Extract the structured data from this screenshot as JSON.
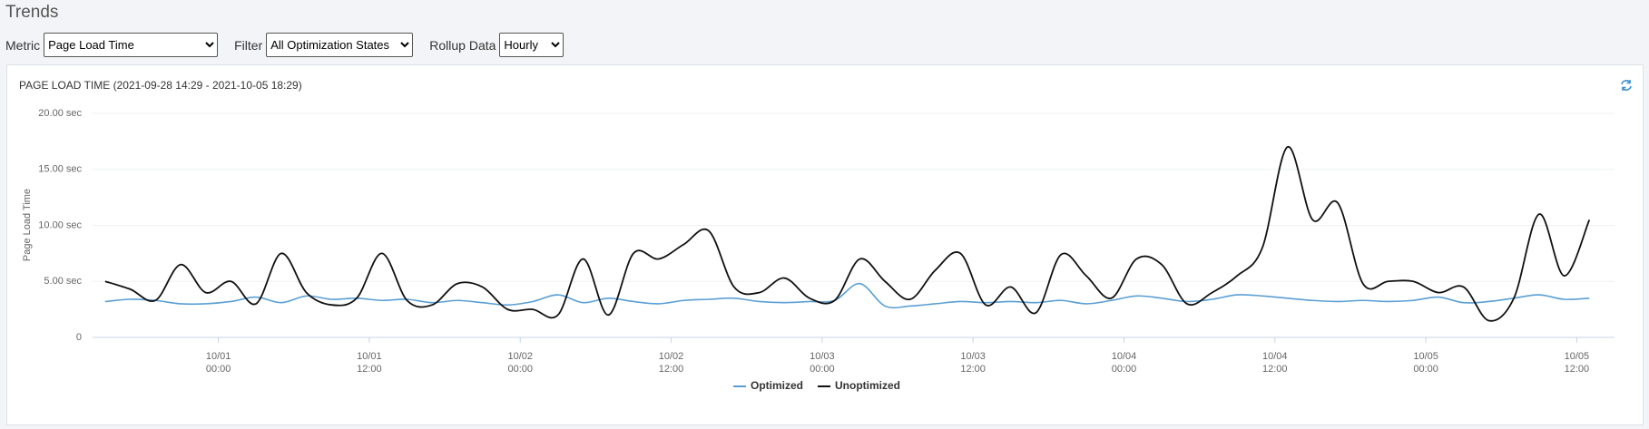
{
  "header": {
    "title": "Trends"
  },
  "controls": [
    {
      "label": "Metric",
      "value": "Page Load Time"
    },
    {
      "label": "Filter",
      "value": "All Optimization States"
    },
    {
      "label": "Rollup Data",
      "value": "Hourly"
    }
  ],
  "chart_data": {
    "type": "line",
    "title": "PAGE LOAD TIME (2021-09-28 14:29 - 2021-10-05 18:29)",
    "ylabel": "Page Load Time",
    "x": [
      "09/30 15:00",
      "09/30 17:00",
      "09/30 19:00",
      "09/30 21:00",
      "09/30 23:00",
      "10/01 01:00",
      "10/01 03:00",
      "10/01 05:00",
      "10/01 07:00",
      "10/01 09:00",
      "10/01 11:00",
      "10/01 13:00",
      "10/01 15:00",
      "10/01 17:00",
      "10/01 19:00",
      "10/01 21:00",
      "10/01 23:00",
      "10/02 01:00",
      "10/02 03:00",
      "10/02 05:00",
      "10/02 07:00",
      "10/02 09:00",
      "10/02 11:00",
      "10/02 13:00",
      "10/02 15:00",
      "10/02 17:00",
      "10/02 19:00",
      "10/02 21:00",
      "10/02 23:00",
      "10/03 01:00",
      "10/03 03:00",
      "10/03 05:00",
      "10/03 07:00",
      "10/03 09:00",
      "10/03 11:00",
      "10/03 13:00",
      "10/03 15:00",
      "10/03 17:00",
      "10/03 19:00",
      "10/03 21:00",
      "10/03 23:00",
      "10/04 01:00",
      "10/04 03:00",
      "10/04 05:00",
      "10/04 07:00",
      "10/04 09:00",
      "10/04 11:00",
      "10/04 13:00",
      "10/04 15:00",
      "10/04 17:00",
      "10/04 19:00",
      "10/04 21:00",
      "10/04 23:00",
      "10/05 01:00",
      "10/05 03:00",
      "10/05 05:00",
      "10/05 07:00",
      "10/05 09:00",
      "10/05 11:00",
      "10/05 13:00"
    ],
    "series": [
      {
        "name": "Optimized",
        "color": "#5a9fd4",
        "values": [
          3.2,
          3.4,
          3.3,
          3.0,
          3.0,
          3.2,
          3.6,
          3.1,
          3.7,
          3.4,
          3.5,
          3.3,
          3.4,
          3.1,
          3.3,
          3.1,
          2.9,
          3.2,
          3.8,
          3.1,
          3.5,
          3.2,
          3.0,
          3.3,
          3.4,
          3.5,
          3.2,
          3.1,
          3.2,
          3.3,
          4.8,
          2.8,
          2.8,
          3.0,
          3.2,
          3.1,
          3.2,
          3.1,
          3.3,
          3.0,
          3.3,
          3.7,
          3.5,
          3.2,
          3.4,
          3.8,
          3.7,
          3.5,
          3.3,
          3.2,
          3.3,
          3.2,
          3.3,
          3.6,
          3.1,
          3.2,
          3.5,
          3.8,
          3.4,
          3.5
        ]
      },
      {
        "name": "Unoptimized",
        "color": "#111111",
        "values": [
          5.0,
          4.3,
          3.3,
          6.5,
          4.0,
          5.0,
          3.0,
          7.5,
          4.0,
          2.9,
          3.5,
          7.5,
          3.3,
          2.9,
          4.8,
          4.5,
          2.5,
          2.5,
          2.0,
          7.0,
          2.0,
          7.5,
          7.0,
          8.3,
          9.5,
          4.5,
          4.0,
          5.3,
          3.5,
          3.3,
          7.0,
          5.0,
          3.4,
          6.0,
          7.5,
          2.9,
          4.5,
          2.2,
          7.4,
          5.5,
          3.5,
          7.0,
          6.5,
          3.0,
          4.0,
          5.5,
          8.0,
          17.0,
          10.5,
          12.0,
          4.8,
          5.0,
          5.0,
          4.0,
          4.5,
          1.5,
          3.5,
          11.0,
          5.5,
          10.5
        ]
      }
    ],
    "xlim": [
      "09/30 14:00",
      "10/05 15:00"
    ],
    "ylim": [
      0,
      20
    ],
    "yticks": [
      0,
      {
        "value": 5,
        "label": "5.00 sec"
      },
      {
        "value": 10,
        "label": "10.00 sec"
      },
      {
        "value": 15,
        "label": "15.00 sec"
      },
      {
        "value": 20,
        "label": "20.00 sec"
      }
    ],
    "xticks": [
      {
        "value": "10/01 00:00",
        "label": [
          "10/01",
          "00:00"
        ]
      },
      {
        "value": "10/01 12:00",
        "label": [
          "10/01",
          "12:00"
        ]
      },
      {
        "value": "10/02 00:00",
        "label": [
          "10/02",
          "00:00"
        ]
      },
      {
        "value": "10/02 12:00",
        "label": [
          "10/02",
          "12:00"
        ]
      },
      {
        "value": "10/03 00:00",
        "label": [
          "10/03",
          "00:00"
        ]
      },
      {
        "value": "10/03 12:00",
        "label": [
          "10/03",
          "12:00"
        ]
      },
      {
        "value": "10/04 00:00",
        "label": [
          "10/04",
          "00:00"
        ]
      },
      {
        "value": "10/04 12:00",
        "label": [
          "10/04",
          "12:00"
        ]
      },
      {
        "value": "10/05 00:00",
        "label": [
          "10/05",
          "00:00"
        ]
      },
      {
        "value": "10/05 12:00",
        "label": [
          "10/05",
          "12:00"
        ]
      }
    ],
    "grid": true,
    "legend": "bottom"
  }
}
